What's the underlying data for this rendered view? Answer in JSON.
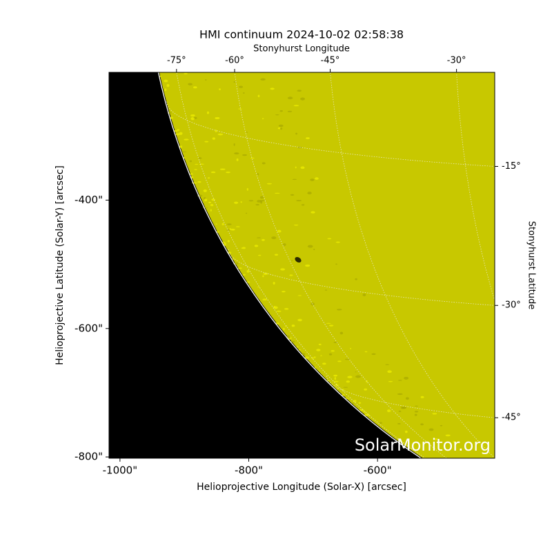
{
  "title": "HMI continuum 2024-10-02 02:58:38",
  "chart_data": {
    "type": "image",
    "x_label": "Helioprojective Longitude (Solar-X) [arcsec]",
    "y_label": "Helioprojective Latitude (Solar-Y) [arcsec]",
    "top_label": "Stonyhurst Longitude",
    "right_label": "Stonyhurst Latitude",
    "xlim": [
      -1017,
      -418
    ],
    "ylim": [
      -802,
      -201
    ],
    "xticks": [
      {
        "value": -1000,
        "label": "-1000\""
      },
      {
        "value": -800,
        "label": "-800\""
      },
      {
        "value": -600,
        "label": "-600\""
      }
    ],
    "yticks": [
      {
        "value": -400,
        "label": "-400\""
      },
      {
        "value": -600,
        "label": "-600\""
      },
      {
        "value": -800,
        "label": "-800\""
      }
    ],
    "lon_ticks": [
      {
        "value": -75,
        "label": "-75°"
      },
      {
        "value": -60,
        "label": "-60°"
      },
      {
        "value": -45,
        "label": "-45°"
      },
      {
        "value": -30,
        "label": "-30°"
      }
    ],
    "lat_ticks": [
      {
        "value": -15,
        "label": "-15°"
      },
      {
        "value": -30,
        "label": "-30°"
      },
      {
        "value": -45,
        "label": "-45°"
      }
    ],
    "disk_color": "#c8c800",
    "watermark": "SolarMonitor.org"
  }
}
